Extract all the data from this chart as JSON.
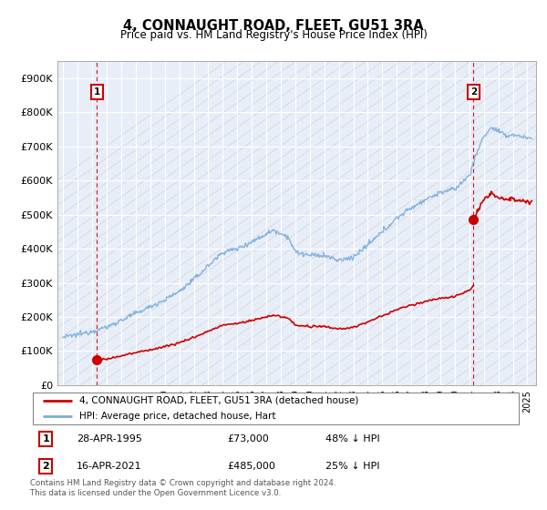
{
  "title": "4, CONNAUGHT ROAD, FLEET, GU51 3RA",
  "subtitle": "Price paid vs. HM Land Registry's House Price Index (HPI)",
  "legend_line1": "4, CONNAUGHT ROAD, FLEET, GU51 3RA (detached house)",
  "legend_line2": "HPI: Average price, detached house, Hart",
  "sale1_date": "28-APR-1995",
  "sale1_price": "£73,000",
  "sale1_hpi": "48% ↓ HPI",
  "sale1_year": 1995.32,
  "sale1_value": 73000,
  "sale2_date": "16-APR-2021",
  "sale2_price": "£485,000",
  "sale2_hpi": "25% ↓ HPI",
  "sale2_year": 2021.29,
  "sale2_value": 485000,
  "ylabel_ticks": [
    0,
    100000,
    200000,
    300000,
    400000,
    500000,
    600000,
    700000,
    800000,
    900000
  ],
  "ylabel_labels": [
    "£0",
    "£100K",
    "£200K",
    "£300K",
    "£400K",
    "£500K",
    "£600K",
    "£700K",
    "£800K",
    "£900K"
  ],
  "xmin": 1992.6,
  "xmax": 2025.6,
  "ymin": 0,
  "ymax": 950000,
  "hpi_color": "#7aaddc",
  "price_color": "#cc0000",
  "bg_color": "#e8eef8",
  "footnote": "Contains HM Land Registry data © Crown copyright and database right 2024.\nThis data is licensed under the Open Government Licence v3.0."
}
